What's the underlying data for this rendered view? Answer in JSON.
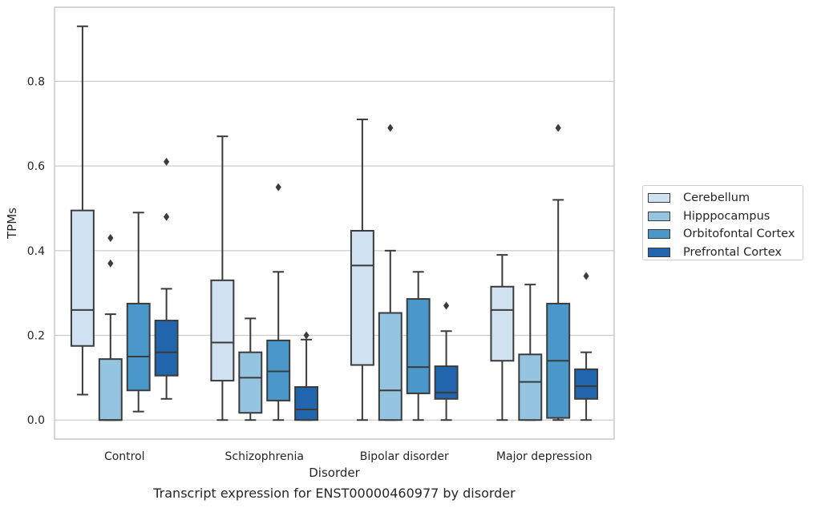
{
  "chart_data": {
    "type": "box",
    "title": "",
    "caption": "Transcript expression for ENST00000460977 by disorder",
    "xlabel": "Disorder",
    "ylabel": "TPMs",
    "ylim": [
      -0.045,
      0.975
    ],
    "yticks": [
      0.0,
      0.2,
      0.4,
      0.6,
      0.8
    ],
    "ytick_labels": [
      "0.0",
      "0.2",
      "0.4",
      "0.6",
      "0.8"
    ],
    "grid": "horizontal",
    "legend_position": "right",
    "categories": [
      "Control",
      "Schizophrenia",
      "Bipolar disorder",
      "Major depression"
    ],
    "series": [
      {
        "name": "Cerebellum",
        "color": "#d0e1f2",
        "boxes": [
          {
            "whislo": 0.06,
            "q1": 0.175,
            "med": 0.26,
            "q3": 0.495,
            "whishi": 0.93,
            "fliers": []
          },
          {
            "whislo": 0.0,
            "q1": 0.093,
            "med": 0.183,
            "q3": 0.33,
            "whishi": 0.67,
            "fliers": []
          },
          {
            "whislo": 0.0,
            "q1": 0.13,
            "med": 0.365,
            "q3": 0.447,
            "whishi": 0.71,
            "fliers": []
          },
          {
            "whislo": 0.0,
            "q1": 0.14,
            "med": 0.26,
            "q3": 0.315,
            "whishi": 0.39,
            "fliers": []
          }
        ]
      },
      {
        "name": "Hipppocampus",
        "color": "#94c4df",
        "boxes": [
          {
            "whislo": 0.0,
            "q1": 0.0,
            "med": 0.0,
            "q3": 0.144,
            "whishi": 0.25,
            "fliers": [
              0.43,
              0.37
            ]
          },
          {
            "whislo": 0.0,
            "q1": 0.017,
            "med": 0.1,
            "q3": 0.16,
            "whishi": 0.24,
            "fliers": []
          },
          {
            "whislo": 0.0,
            "q1": 0.0,
            "med": 0.07,
            "q3": 0.253,
            "whishi": 0.4,
            "fliers": [
              0.69
            ]
          },
          {
            "whislo": 0.0,
            "q1": 0.0,
            "med": 0.09,
            "q3": 0.155,
            "whishi": 0.32,
            "fliers": []
          }
        ]
      },
      {
        "name": "Orbitofontal Cortex",
        "color": "#4a98c9",
        "boxes": [
          {
            "whislo": 0.02,
            "q1": 0.07,
            "med": 0.15,
            "q3": 0.275,
            "whishi": 0.49,
            "fliers": []
          },
          {
            "whislo": 0.0,
            "q1": 0.046,
            "med": 0.115,
            "q3": 0.188,
            "whishi": 0.35,
            "fliers": [
              0.55
            ]
          },
          {
            "whislo": 0.0,
            "q1": 0.063,
            "med": 0.125,
            "q3": 0.286,
            "whishi": 0.35,
            "fliers": []
          },
          {
            "whislo": 0.0,
            "q1": 0.005,
            "med": 0.14,
            "q3": 0.275,
            "whishi": 0.52,
            "fliers": [
              0.69
            ]
          }
        ]
      },
      {
        "name": "Prefrontal Cortex",
        "color": "#2166ac",
        "boxes": [
          {
            "whislo": 0.05,
            "q1": 0.105,
            "med": 0.16,
            "q3": 0.235,
            "whishi": 0.31,
            "fliers": [
              0.61,
              0.48
            ]
          },
          {
            "whislo": 0.0,
            "q1": 0.0,
            "med": 0.025,
            "q3": 0.078,
            "whishi": 0.19,
            "fliers": [
              0.2
            ]
          },
          {
            "whislo": 0.0,
            "q1": 0.05,
            "med": 0.065,
            "q3": 0.127,
            "whishi": 0.21,
            "fliers": [
              0.27
            ]
          },
          {
            "whislo": 0.0,
            "q1": 0.05,
            "med": 0.08,
            "q3": 0.12,
            "whishi": 0.16,
            "fliers": [
              0.34
            ]
          }
        ]
      }
    ]
  }
}
